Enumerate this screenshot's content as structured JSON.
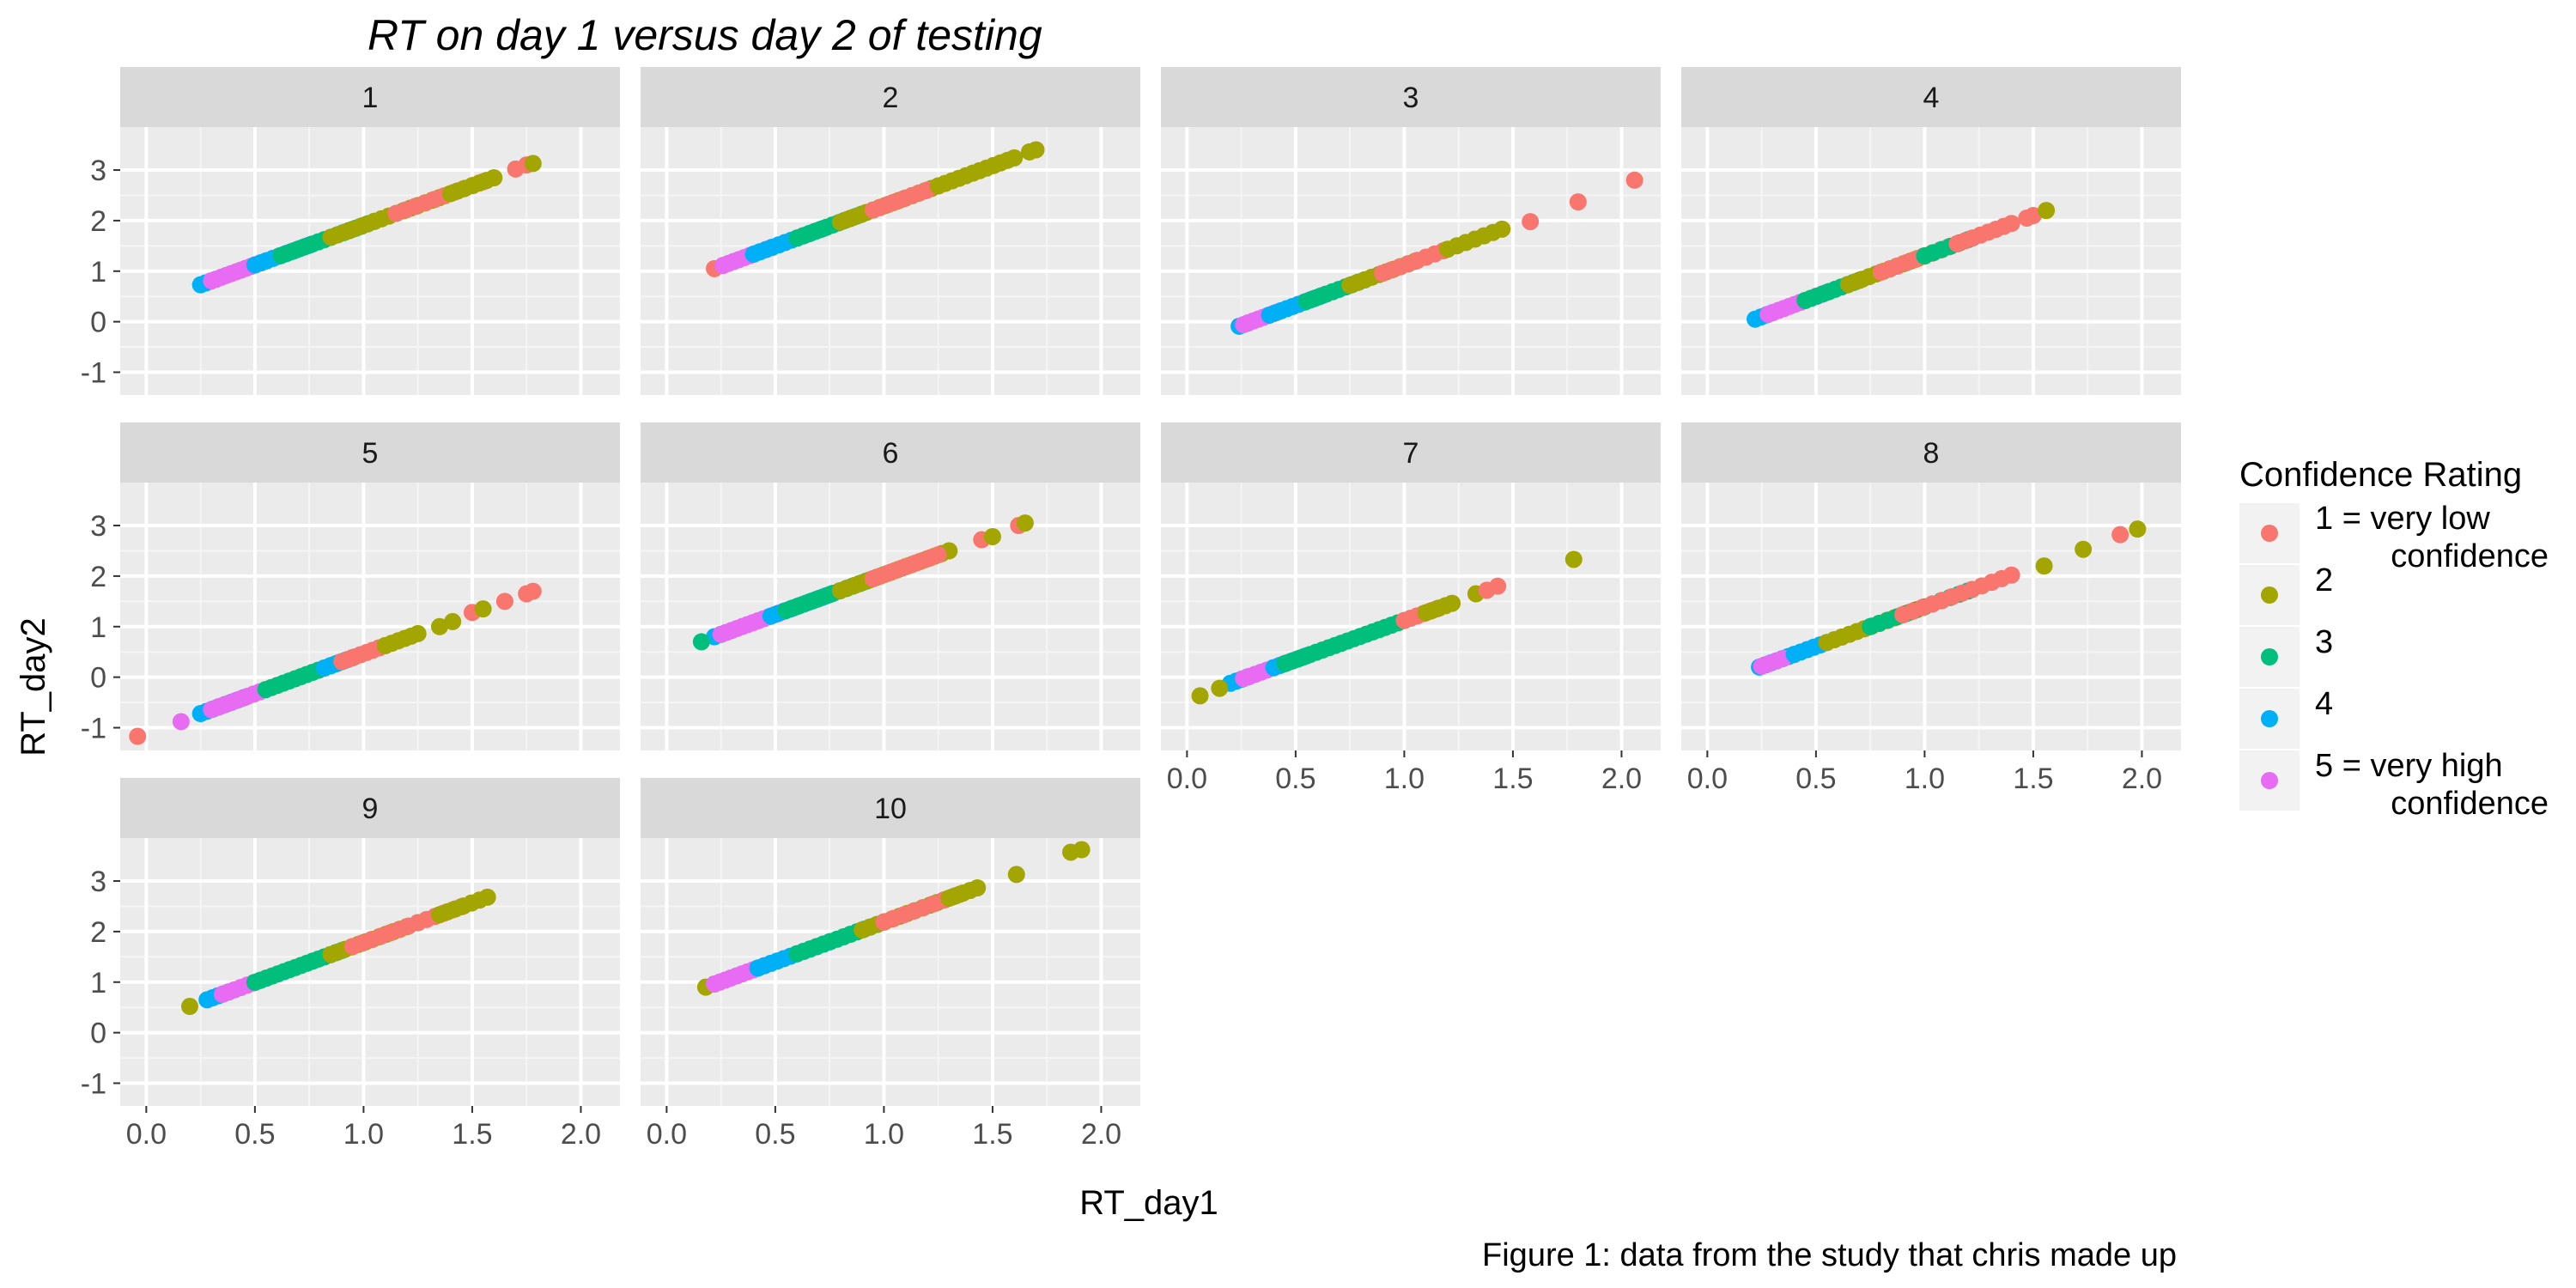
{
  "chart_data": {
    "type": "scatter",
    "title": "RT on day 1 versus day 2 of testing",
    "xlabel": "RT_day1",
    "ylabel": "RT_day2",
    "caption": "Figure 1: data from the study that chris made up",
    "xlim": [
      -0.12,
      2.18
    ],
    "ylim": [
      -1.45,
      3.85
    ],
    "x_ticks": [
      0.0,
      0.5,
      1.0,
      1.5,
      2.0
    ],
    "x_tick_labels": [
      "0.0",
      "0.5",
      "1.0",
      "1.5",
      "2.0"
    ],
    "y_ticks": [
      -1,
      0,
      1,
      2,
      3
    ],
    "y_tick_labels": [
      "-1",
      "0",
      "1",
      "2",
      "3"
    ],
    "grid": true,
    "legend": {
      "title": "Confidence Rating",
      "position": "right",
      "entries": [
        {
          "level": 1,
          "lines": [
            "1 = very low",
            "confidence"
          ],
          "color": "#F8766D"
        },
        {
          "level": 2,
          "lines": [
            "2"
          ],
          "color": "#A3A500"
        },
        {
          "level": 3,
          "lines": [
            "3"
          ],
          "color": "#00BF7D"
        },
        {
          "level": 4,
          "lines": [
            "4"
          ],
          "color": "#00B0F6"
        },
        {
          "level": 5,
          "lines": [
            "5 = very high",
            "confidence"
          ],
          "color": "#E76BF3"
        }
      ]
    },
    "facets": [
      {
        "label": "1",
        "segments": [
          {
            "c": 4,
            "x0": 0.25,
            "x1": 0.32,
            "n": 4
          },
          {
            "c": 5,
            "x0": 0.3,
            "x1": 0.55,
            "n": 12
          },
          {
            "c": 4,
            "x0": 0.5,
            "x1": 0.75,
            "n": 10
          },
          {
            "c": 3,
            "x0": 0.62,
            "x1": 1.05,
            "n": 16
          },
          {
            "c": 2,
            "x0": 0.85,
            "x1": 1.35,
            "n": 16
          },
          {
            "c": 1,
            "x0": 1.15,
            "x1": 1.55,
            "n": 10
          },
          {
            "c": 2,
            "x0": 1.4,
            "x1": 1.6,
            "n": 7
          }
        ],
        "points": [
          {
            "c": 1,
            "x": 1.7,
            "y": 3.02
          },
          {
            "c": 1,
            "x": 1.75,
            "y": 3.1
          },
          {
            "c": 2,
            "x": 1.78,
            "y": 3.13
          }
        ]
      },
      {
        "label": "2",
        "segments": [
          {
            "c": 1,
            "x0": 0.22,
            "x1": 0.26,
            "n": 2
          },
          {
            "c": 5,
            "x0": 0.26,
            "x1": 0.48,
            "n": 10
          },
          {
            "c": 4,
            "x0": 0.4,
            "x1": 0.72,
            "n": 12
          },
          {
            "c": 3,
            "x0": 0.6,
            "x1": 0.9,
            "n": 12
          },
          {
            "c": 2,
            "x0": 0.8,
            "x1": 1.25,
            "n": 16
          },
          {
            "c": 1,
            "x0": 0.95,
            "x1": 1.2,
            "n": 8
          },
          {
            "c": 2,
            "x0": 1.25,
            "x1": 1.6,
            "n": 12
          }
        ],
        "points": [
          {
            "c": 2,
            "x": 1.67,
            "y": 3.36
          },
          {
            "c": 2,
            "x": 1.7,
            "y": 3.4
          }
        ]
      },
      {
        "label": "3",
        "segments": [
          {
            "c": 4,
            "x0": 0.24,
            "x1": 0.28,
            "n": 2
          },
          {
            "c": 5,
            "x0": 0.26,
            "x1": 0.42,
            "n": 8
          },
          {
            "c": 4,
            "x0": 0.38,
            "x1": 0.62,
            "n": 10
          },
          {
            "c": 3,
            "x0": 0.55,
            "x1": 0.82,
            "n": 10
          },
          {
            "c": 2,
            "x0": 0.75,
            "x1": 1.05,
            "n": 10
          },
          {
            "c": 1,
            "x0": 0.9,
            "x1": 1.18,
            "n": 8
          },
          {
            "c": 2,
            "x0": 1.2,
            "x1": 1.45,
            "n": 7
          }
        ],
        "points": [
          {
            "c": 1,
            "x": 1.58,
            "y": 1.98
          },
          {
            "c": 1,
            "x": 1.8,
            "y": 2.37
          },
          {
            "c": 1,
            "x": 2.06,
            "y": 2.8
          }
        ]
      },
      {
        "label": "4",
        "segments": [
          {
            "c": 4,
            "x0": 0.22,
            "x1": 0.3,
            "n": 4
          },
          {
            "c": 5,
            "x0": 0.28,
            "x1": 0.55,
            "n": 12
          },
          {
            "c": 3,
            "x0": 0.45,
            "x1": 0.7,
            "n": 10
          },
          {
            "c": 2,
            "x0": 0.65,
            "x1": 1.0,
            "n": 12
          },
          {
            "c": 1,
            "x0": 0.8,
            "x1": 1.15,
            "n": 10
          },
          {
            "c": 3,
            "x0": 1.0,
            "x1": 1.2,
            "n": 6
          },
          {
            "c": 1,
            "x0": 1.15,
            "x1": 1.4,
            "n": 8
          }
        ],
        "points": [
          {
            "c": 1,
            "x": 1.47,
            "y": 2.05
          },
          {
            "c": 1,
            "x": 1.5,
            "y": 2.1
          },
          {
            "c": 2,
            "x": 1.56,
            "y": 2.2
          }
        ]
      },
      {
        "label": "5",
        "segments": [
          {
            "c": 4,
            "x0": 0.25,
            "x1": 0.45,
            "n": 8
          },
          {
            "c": 5,
            "x0": 0.3,
            "x1": 0.55,
            "n": 10
          },
          {
            "c": 3,
            "x0": 0.55,
            "x1": 0.9,
            "n": 14
          },
          {
            "c": 4,
            "x0": 0.82,
            "x1": 0.95,
            "n": 5
          },
          {
            "c": 1,
            "x0": 0.9,
            "x1": 1.1,
            "n": 8
          },
          {
            "c": 2,
            "x0": 1.1,
            "x1": 1.25,
            "n": 6
          }
        ],
        "points": [
          {
            "c": 1,
            "x": -0.04,
            "y": -1.17
          },
          {
            "c": 5,
            "x": 0.16,
            "y": -0.88
          },
          {
            "c": 2,
            "x": 1.35,
            "y": 1.0
          },
          {
            "c": 2,
            "x": 1.41,
            "y": 1.1
          },
          {
            "c": 1,
            "x": 1.5,
            "y": 1.28
          },
          {
            "c": 2,
            "x": 1.55,
            "y": 1.35
          },
          {
            "c": 1,
            "x": 1.65,
            "y": 1.5
          },
          {
            "c": 1,
            "x": 1.75,
            "y": 1.65
          },
          {
            "c": 1,
            "x": 1.78,
            "y": 1.7
          }
        ]
      },
      {
        "label": "6",
        "segments": [
          {
            "c": 4,
            "x0": 0.22,
            "x1": 0.25,
            "n": 2
          },
          {
            "c": 5,
            "x0": 0.25,
            "x1": 0.52,
            "n": 12
          },
          {
            "c": 4,
            "x0": 0.48,
            "x1": 0.75,
            "n": 10
          },
          {
            "c": 3,
            "x0": 0.55,
            "x1": 0.95,
            "n": 14
          },
          {
            "c": 2,
            "x0": 0.8,
            "x1": 1.3,
            "n": 16
          },
          {
            "c": 1,
            "x0": 0.95,
            "x1": 1.25,
            "n": 10
          }
        ],
        "points": [
          {
            "c": 3,
            "x": 0.16,
            "y": 0.7
          },
          {
            "c": 1,
            "x": 1.45,
            "y": 2.72
          },
          {
            "c": 2,
            "x": 1.5,
            "y": 2.78
          },
          {
            "c": 1,
            "x": 1.62,
            "y": 3.0
          },
          {
            "c": 2,
            "x": 1.65,
            "y": 3.05
          }
        ]
      },
      {
        "label": "7",
        "segments": [
          {
            "c": 4,
            "x0": 0.2,
            "x1": 0.28,
            "n": 4
          },
          {
            "c": 5,
            "x0": 0.26,
            "x1": 0.45,
            "n": 8
          },
          {
            "c": 4,
            "x0": 0.4,
            "x1": 0.55,
            "n": 6
          },
          {
            "c": 3,
            "x0": 0.45,
            "x1": 1.0,
            "n": 20
          },
          {
            "c": 1,
            "x0": 1.0,
            "x1": 1.15,
            "n": 6
          },
          {
            "c": 2,
            "x0": 1.1,
            "x1": 1.22,
            "n": 5
          }
        ],
        "points": [
          {
            "c": 2,
            "x": 0.06,
            "y": -0.37
          },
          {
            "c": 2,
            "x": 0.15,
            "y": -0.22
          },
          {
            "c": 2,
            "x": 1.33,
            "y": 1.65
          },
          {
            "c": 1,
            "x": 1.38,
            "y": 1.72
          },
          {
            "c": 1,
            "x": 1.43,
            "y": 1.8
          },
          {
            "c": 2,
            "x": 1.78,
            "y": 2.33
          }
        ]
      },
      {
        "label": "8",
        "segments": [
          {
            "c": 4,
            "x0": 0.24,
            "x1": 0.4,
            "n": 7
          },
          {
            "c": 5,
            "x0": 0.25,
            "x1": 0.35,
            "n": 4
          },
          {
            "c": 4,
            "x0": 0.4,
            "x1": 0.55,
            "n": 6
          },
          {
            "c": 2,
            "x0": 0.55,
            "x1": 1.0,
            "n": 14
          },
          {
            "c": 3,
            "x0": 0.75,
            "x1": 1.2,
            "n": 12
          },
          {
            "c": 1,
            "x0": 0.9,
            "x1": 1.4,
            "n": 12
          }
        ],
        "points": [
          {
            "c": 2,
            "x": 1.55,
            "y": 2.2
          },
          {
            "c": 2,
            "x": 1.73,
            "y": 2.53
          },
          {
            "c": 1,
            "x": 1.9,
            "y": 2.82
          },
          {
            "c": 2,
            "x": 1.98,
            "y": 2.93
          }
        ]
      },
      {
        "label": "9",
        "segments": [
          {
            "c": 4,
            "x0": 0.28,
            "x1": 0.38,
            "n": 5
          },
          {
            "c": 5,
            "x0": 0.35,
            "x1": 0.55,
            "n": 8
          },
          {
            "c": 3,
            "x0": 0.5,
            "x1": 0.9,
            "n": 16
          },
          {
            "c": 2,
            "x0": 0.85,
            "x1": 1.2,
            "n": 12
          },
          {
            "c": 1,
            "x0": 0.95,
            "x1": 1.25,
            "n": 8
          },
          {
            "c": 1,
            "x0": 1.25,
            "x1": 1.45,
            "n": 6
          },
          {
            "c": 2,
            "x0": 1.35,
            "x1": 1.57,
            "n": 7
          }
        ],
        "points": [
          {
            "c": 2,
            "x": 0.2,
            "y": 0.52
          }
        ]
      },
      {
        "label": "10",
        "segments": [
          {
            "c": 2,
            "x0": 0.18,
            "x1": 0.22,
            "n": 2
          },
          {
            "c": 5,
            "x0": 0.22,
            "x1": 0.45,
            "n": 10
          },
          {
            "c": 4,
            "x0": 0.42,
            "x1": 0.75,
            "n": 12
          },
          {
            "c": 3,
            "x0": 0.6,
            "x1": 1.0,
            "n": 14
          },
          {
            "c": 2,
            "x0": 0.9,
            "x1": 1.35,
            "n": 14
          },
          {
            "c": 1,
            "x0": 1.0,
            "x1": 1.32,
            "n": 8
          },
          {
            "c": 2,
            "x0": 1.3,
            "x1": 1.43,
            "n": 5
          }
        ],
        "points": [
          {
            "c": 2,
            "x": 1.61,
            "y": 3.13
          },
          {
            "c": 2,
            "x": 1.86,
            "y": 3.57
          },
          {
            "c": 2,
            "x": 1.91,
            "y": 3.62
          }
        ]
      }
    ]
  }
}
